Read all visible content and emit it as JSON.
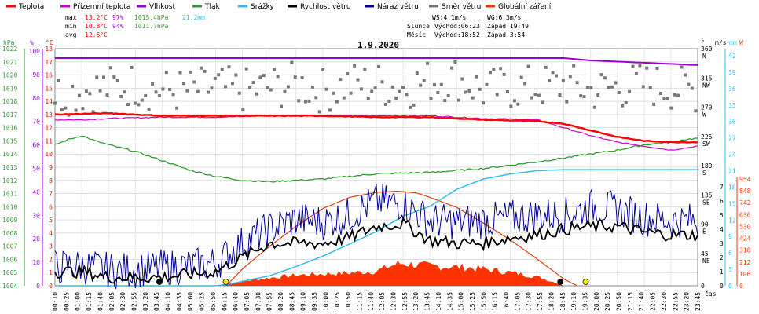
{
  "legend": [
    {
      "name": "Teplota",
      "color": "#ff0000"
    },
    {
      "name": "Přízemní teplota",
      "color": "#cc00cc"
    },
    {
      "name": "Vlhkost",
      "color": "#9900cc"
    },
    {
      "name": "Tlak",
      "color": "#339933"
    },
    {
      "name": "Srážky",
      "color": "#33bbee"
    },
    {
      "name": "Rychlost větru",
      "color": "#000000"
    },
    {
      "name": "Náraz větru",
      "color": "#000099"
    },
    {
      "name": "Směr větru",
      "color": "#777777"
    },
    {
      "name": "Globální záření",
      "color": "#ff3300"
    }
  ],
  "stats": {
    "max_label": "max",
    "max_temp": "13.2°C",
    "max_hum": "97%",
    "max_press": "1015.4hPa",
    "max_rain": "21.2mm",
    "min_label": "min",
    "min_temp": "10.8°C",
    "min_hum": "94%",
    "min_press": "1011.7hPa",
    "avg_label": "avg",
    "avg_temp": "12.6°C"
  },
  "info": {
    "ws": "WS:4.1m/s",
    "wg": "WG:6.3m/s",
    "sun_label": "Slunce",
    "sun_rise": "Východ:06:23",
    "sun_set": "Západ:19:49",
    "moon_label": "Měsíc",
    "moon_rise": "Východ:18:52",
    "moon_set": "Západ:3:54"
  },
  "chart_data": {
    "type": "line",
    "title": "1.9.2020",
    "xlabel": "čas",
    "x_ticks": [
      "00:10",
      "00:25",
      "01:00",
      "01:15",
      "01:40",
      "02:05",
      "02:30",
      "02:55",
      "03:20",
      "03:45",
      "04:10",
      "04:35",
      "05:00",
      "05:25",
      "05:50",
      "06:15",
      "06:40",
      "07:05",
      "07:30",
      "07:55",
      "08:20",
      "08:45",
      "09:10",
      "09:35",
      "10:00",
      "10:25",
      "10:50",
      "11:15",
      "11:40",
      "12:05",
      "12:30",
      "12:55",
      "13:20",
      "13:45",
      "14:10",
      "14:35",
      "15:00",
      "15:25",
      "15:50",
      "16:15",
      "16:40",
      "17:05",
      "17:30",
      "17:55",
      "18:20",
      "18:45",
      "19:10",
      "19:35",
      "20:00",
      "20:25",
      "20:50",
      "21:15",
      "21:40",
      "22:05",
      "22:30",
      "22:55",
      "23:20",
      "23:45"
    ],
    "axes": {
      "pressure": {
        "unit": "hPa",
        "color": "#339933",
        "ticks": [
          "1004",
          "1005",
          "1006",
          "1007",
          "1008",
          "1009",
          "1010",
          "1011",
          "1012",
          "1013",
          "1014",
          "1015",
          "1016",
          "1017",
          "1018",
          "1019",
          "1020",
          "1021",
          "1022"
        ]
      },
      "humidity": {
        "unit": "%",
        "color": "#9900cc",
        "ticks": [
          "0",
          "10",
          "20",
          "30",
          "40",
          "50",
          "60",
          "70",
          "80",
          "90",
          "100"
        ]
      },
      "temperature": {
        "unit": "°C",
        "color": "#ff0000",
        "ticks": [
          "0",
          "1",
          "2",
          "3",
          "4",
          "5",
          "6",
          "7",
          "8",
          "9",
          "10",
          "11",
          "12",
          "13",
          "14",
          "15",
          "16",
          "17",
          "18"
        ]
      },
      "direction": {
        "unit": "°",
        "ticks": [
          "0",
          "45 NE",
          "90 E",
          "135 SE",
          "180 S",
          "225 SW",
          "270 W",
          "315 NW",
          "360 N"
        ]
      },
      "wind": {
        "unit": "m/s",
        "ticks": [
          "0",
          "1",
          "2",
          "3",
          "4",
          "5",
          "6",
          "7"
        ]
      },
      "rain": {
        "unit": "mm",
        "color": "#33bbee",
        "ticks": [
          "0",
          "3",
          "6",
          "9",
          "12",
          "15",
          "18",
          "21",
          "24",
          "27",
          "30",
          "33",
          "36",
          "39",
          "42"
        ]
      },
      "radiation": {
        "unit": "W",
        "color": "#ff3300",
        "ticks": [
          "0",
          "106",
          "212",
          "318",
          "424",
          "530",
          "636",
          "742",
          "848",
          "954"
        ]
      }
    },
    "series": [
      {
        "name": "Teplota",
        "unit": "°C",
        "x_hours": [
          0,
          2,
          4,
          6,
          8,
          10,
          12,
          14,
          16,
          18,
          19,
          20,
          21,
          22,
          23,
          24
        ],
        "values": [
          13.0,
          13.1,
          12.9,
          12.9,
          12.9,
          12.9,
          12.8,
          12.8,
          12.6,
          12.5,
          12.3,
          11.8,
          11.3,
          11.0,
          10.9,
          10.9
        ]
      },
      {
        "name": "Přízemní teplota",
        "unit": "°C",
        "x_hours": [
          0,
          1,
          2,
          4,
          6,
          8,
          10,
          12,
          14,
          16,
          18,
          20,
          21,
          22,
          23,
          24
        ],
        "values": [
          12.6,
          12.6,
          12.7,
          12.8,
          12.8,
          12.9,
          12.9,
          12.9,
          12.9,
          12.7,
          12.6,
          11.4,
          10.9,
          10.6,
          10.3,
          10.6
        ]
      },
      {
        "name": "Vlhkost",
        "unit": "%",
        "x_hours": [
          0,
          4,
          8,
          12,
          16,
          19,
          20,
          22,
          24
        ],
        "values": [
          97,
          97,
          97,
          97,
          97,
          97,
          96,
          95,
          94
        ]
      },
      {
        "name": "Tlak",
        "unit": "hPa",
        "x_hours": [
          0,
          0.5,
          1,
          1.5,
          2,
          3,
          4,
          5,
          6,
          7,
          8,
          10,
          12,
          14,
          16,
          18,
          20,
          21,
          22,
          23,
          23.5,
          24
        ],
        "values": [
          1014.7,
          1015.1,
          1015.4,
          1015.0,
          1014.7,
          1014.2,
          1013.5,
          1012.8,
          1012.3,
          1012.0,
          1011.9,
          1012.1,
          1012.5,
          1012.6,
          1012.9,
          1013.4,
          1014.0,
          1014.3,
          1014.7,
          1014.9,
          1015.1,
          1015.2
        ]
      },
      {
        "name": "Srážky",
        "unit": "mm",
        "x_hours": [
          0,
          6,
          6.5,
          7,
          8,
          9,
          10,
          11,
          12,
          13,
          14,
          15,
          16,
          17,
          18,
          19,
          20,
          22,
          24
        ],
        "values": [
          0,
          0,
          0.3,
          0.8,
          1.8,
          3.5,
          5.4,
          7.6,
          9.9,
          12.7,
          14.5,
          17.6,
          19.5,
          20.4,
          21.0,
          21.2,
          21.2,
          21.2,
          21.2
        ]
      },
      {
        "name": "Rychlost větru",
        "unit": "m/s",
        "x_hours": [
          0,
          1,
          2,
          3,
          4,
          5,
          6,
          7,
          8,
          9,
          10,
          11,
          12,
          13,
          14,
          15,
          16,
          17,
          18,
          19,
          20,
          21,
          22,
          23,
          24
        ],
        "values": [
          1.0,
          1.0,
          0.6,
          0.6,
          0.6,
          0.8,
          1.0,
          2.0,
          3.0,
          3.0,
          3.0,
          3.4,
          4.2,
          4.4,
          3.2,
          3.0,
          3.0,
          3.4,
          3.6,
          4.0,
          4.2,
          4.2,
          3.8,
          3.6,
          3.6
        ]
      },
      {
        "name": "Náraz větru",
        "unit": "m/s",
        "x_hours": [
          0,
          1,
          2,
          3,
          4,
          5,
          6,
          7,
          8,
          9,
          10,
          11,
          12,
          13,
          14,
          15,
          16,
          17,
          18,
          19,
          20,
          21,
          22,
          23,
          24
        ],
        "values": [
          1.3,
          1.4,
          1.1,
          1.1,
          1.3,
          1.4,
          1.6,
          3.0,
          4.0,
          4.7,
          4.5,
          5.0,
          6.0,
          5.8,
          4.6,
          4.5,
          4.6,
          4.8,
          5.0,
          5.0,
          5.6,
          5.4,
          4.8,
          4.6,
          4.6
        ]
      },
      {
        "name": "Globální záření",
        "unit": "W",
        "x_hours": [
          0,
          6.2,
          7,
          8,
          9,
          10,
          11,
          12,
          12.7,
          13,
          14,
          15,
          16,
          17,
          18,
          18.8,
          19,
          24
        ],
        "values": [
          0,
          0,
          40,
          70,
          95,
          105,
          115,
          130,
          190,
          200,
          175,
          170,
          150,
          120,
          80,
          20,
          0,
          0
        ]
      },
      {
        "name": "Globální záření (teoretické)",
        "unit": "W",
        "x_hours": [
          6.4,
          7,
          8,
          9,
          10,
          11,
          12,
          12.8,
          13.5,
          14,
          15,
          16,
          17,
          18,
          19,
          19.5
        ],
        "values": [
          0,
          150,
          350,
          530,
          690,
          790,
          835,
          845,
          830,
          790,
          700,
          560,
          410,
          240,
          60,
          0
        ]
      },
      {
        "name": "Směr větru",
        "unit": "°",
        "x_hours": [
          0,
          1,
          2,
          3,
          4,
          5,
          6,
          7,
          8,
          9,
          10,
          11,
          12,
          13,
          14,
          15,
          16,
          17,
          18,
          19,
          20,
          21,
          22,
          23,
          24
        ],
        "values": [
          295,
          300,
          305,
          310,
          300,
          300,
          305,
          300,
          305,
          310,
          300,
          310,
          310,
          305,
          315,
          320,
          300,
          305,
          305,
          310,
          300,
          305,
          310,
          305,
          300
        ]
      }
    ],
    "markers": [
      {
        "type": "moonset",
        "label": "Západ:3:54",
        "x_hours": 3.9
      },
      {
        "type": "sunrise",
        "label": "Východ:06:23",
        "x_hours": 6.38
      },
      {
        "type": "moonrise",
        "label": "Východ:18:52",
        "x_hours": 18.87
      },
      {
        "type": "sunset",
        "label": "Západ:19:49",
        "x_hours": 19.82
      }
    ]
  }
}
